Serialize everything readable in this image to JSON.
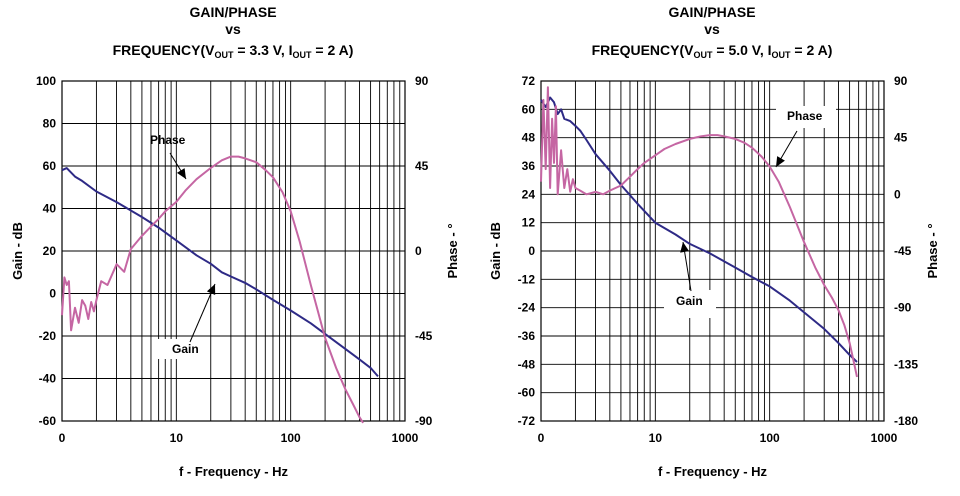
{
  "chart_data": [
    {
      "type": "line",
      "title_lines": [
        "GAIN/PHASE",
        "vs"
      ],
      "title_parts": [
        {
          "t": "FREQUENCY(V",
          "sub": false
        },
        {
          "t": "OUT",
          "sub": true
        },
        {
          "t": " = 3.3 V, I",
          "sub": false
        },
        {
          "t": "OUT",
          "sub": true
        },
        {
          "t": " = 2 A)",
          "sub": false
        }
      ],
      "xlabel": "f - Frequency - Hz",
      "xscale": "log",
      "xlim": [
        1,
        1000
      ],
      "xticks": [
        1,
        10,
        100,
        1000
      ],
      "xtick_labels": [
        "0",
        "10",
        "100",
        "1000"
      ],
      "ylabel_left": "Gain - dB",
      "ylim_left": [
        -60,
        100
      ],
      "yticks_left": [
        "100",
        "80",
        "60",
        "40",
        "20",
        "0",
        "-20",
        "-40",
        "-60"
      ],
      "ylabel_right": "Phase - °",
      "ylim_right": [
        -90,
        90
      ],
      "yticks_right": [
        "90",
        "45",
        "0",
        "-45",
        "-90"
      ],
      "series": [
        {
          "name": "Gain",
          "axis": "left",
          "color": "#2e2a86",
          "x": [
            1.0,
            1.1,
            1.3,
            1.5,
            2.0,
            3.0,
            5.0,
            7.0,
            10,
            15,
            20,
            25,
            30,
            40,
            50,
            70,
            100,
            150,
            200,
            300,
            400,
            500,
            580
          ],
          "y": [
            58,
            59,
            55,
            53,
            48,
            43,
            36,
            31,
            25,
            18,
            14,
            10,
            8,
            5,
            2,
            -3,
            -8,
            -14,
            -19,
            -26,
            -31,
            -35,
            -39
          ]
        },
        {
          "name": "Phase",
          "axis": "right",
          "color": "#c566a3",
          "x": [
            1.0,
            1.05,
            1.1,
            1.15,
            1.2,
            1.3,
            1.4,
            1.5,
            1.6,
            1.7,
            1.8,
            1.9,
            2.0,
            2.2,
            2.5,
            3.0,
            3.5,
            4.0,
            5.0,
            6.0,
            7.0,
            8.0,
            10,
            12,
            15,
            20,
            25,
            30,
            35,
            40,
            50,
            60,
            70,
            85,
            100,
            120,
            150,
            200,
            250,
            300,
            350,
            400,
            430
          ],
          "y": [
            -34,
            -14,
            -18,
            -16,
            -42,
            -30,
            -38,
            -26,
            -29,
            -36,
            -27,
            -32,
            -26,
            -16,
            -18,
            -7,
            -11,
            1,
            8,
            13,
            17,
            21,
            26,
            32,
            38,
            44,
            48,
            50,
            50,
            49,
            47,
            43,
            39,
            31,
            21,
            5,
            -18,
            -46,
            -62,
            -73,
            -81,
            -88,
            -91
          ]
        }
      ],
      "annotations": [
        "Phase",
        "Gain"
      ]
    },
    {
      "type": "line",
      "title_lines": [
        "GAIN/PHASE",
        "vs"
      ],
      "title_parts": [
        {
          "t": "FREQUENCY(V",
          "sub": false
        },
        {
          "t": "OUT",
          "sub": true
        },
        {
          "t": " = 5.0 V, I",
          "sub": false
        },
        {
          "t": "OUT",
          "sub": true
        },
        {
          "t": " = 2 A)",
          "sub": false
        }
      ],
      "xlabel": "f - Frequency - Hz",
      "xscale": "log",
      "xlim": [
        1,
        1000
      ],
      "xticks": [
        1,
        10,
        100,
        1000
      ],
      "xtick_labels": [
        "0",
        "10",
        "100",
        "1000"
      ],
      "ylabel_left": "Gain - dB",
      "ylim_left": [
        -72,
        72
      ],
      "yticks_left": [
        "72",
        "60",
        "48",
        "36",
        "24",
        "12",
        "0",
        "-12",
        "-24",
        "-36",
        "-48",
        "-60",
        "-72"
      ],
      "ylabel_right": "Phase - °",
      "ylim_right": [
        -180,
        90
      ],
      "yticks_right": [
        "90",
        "45",
        "0",
        "-45",
        "-90",
        "-135",
        "-180"
      ],
      "series": [
        {
          "name": "Gain",
          "axis": "left",
          "color": "#2e2a86",
          "x": [
            1.0,
            1.1,
            1.2,
            1.3,
            1.4,
            1.5,
            1.6,
            1.8,
            2.0,
            2.2,
            2.5,
            3.0,
            4.0,
            5.0,
            7.0,
            10,
            15,
            20,
            30,
            50,
            70,
            100,
            150,
            200,
            300,
            400,
            500,
            580
          ],
          "y": [
            64,
            61,
            65,
            63,
            58,
            60,
            56,
            55,
            53,
            51,
            47,
            41,
            34,
            28,
            20,
            12,
            7,
            3,
            -1,
            -7,
            -11,
            -15,
            -21,
            -26,
            -33,
            -39,
            -44,
            -47
          ]
        },
        {
          "name": "Phase",
          "axis": "right",
          "color": "#c566a3",
          "x": [
            1.0,
            1.05,
            1.1,
            1.15,
            1.2,
            1.25,
            1.3,
            1.35,
            1.4,
            1.5,
            1.6,
            1.7,
            1.8,
            1.9,
            2.0,
            2.2,
            2.5,
            3.0,
            3.5,
            4.0,
            5.0,
            6.0,
            7.0,
            8.0,
            10,
            12,
            15,
            20,
            25,
            30,
            35,
            40,
            50,
            60,
            70,
            85,
            100,
            120,
            150,
            200,
            250,
            300,
            350,
            400,
            450,
            500,
            550,
            580
          ],
          "y": [
            10,
            75,
            20,
            85,
            5,
            60,
            25,
            70,
            0,
            35,
            5,
            20,
            2,
            12,
            5,
            3,
            0,
            2,
            0,
            3,
            7,
            14,
            20,
            25,
            31,
            36,
            40,
            44,
            46,
            47,
            47,
            46,
            44,
            41,
            37,
            30,
            22,
            10,
            -10,
            -38,
            -58,
            -72,
            -82,
            -92,
            -104,
            -118,
            -135,
            -145
          ]
        }
      ],
      "annotations": [
        "Phase",
        "Gain"
      ]
    }
  ]
}
